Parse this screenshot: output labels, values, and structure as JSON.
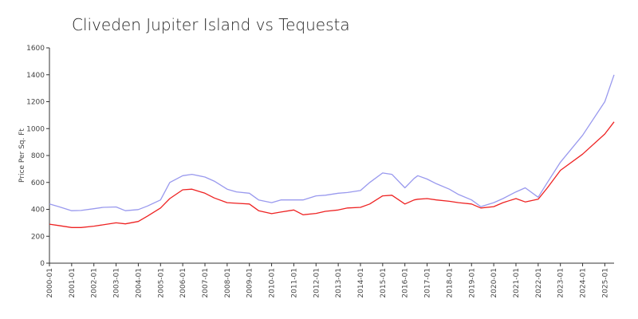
{
  "chart_data": {
    "type": "line",
    "title": "Cliveden Jupiter Island vs Tequesta",
    "xlabel": "",
    "ylabel": "Price Per Sq. Ft",
    "xlim": [
      "2000-01",
      "2025-06"
    ],
    "ylim": [
      0,
      1600
    ],
    "yticks": [
      0,
      200,
      400,
      600,
      800,
      1000,
      1200,
      1400,
      1600
    ],
    "xticks": [
      "2000-01",
      "2001-01",
      "2002-01",
      "2003-01",
      "2004-01",
      "2005-01",
      "2006-01",
      "2007-01",
      "2008-01",
      "2009-01",
      "2010-01",
      "2011-01",
      "2012-01",
      "2013-01",
      "2014-01",
      "2015-01",
      "2016-01",
      "2017-01",
      "2018-01",
      "2019-01",
      "2020-01",
      "2021-01",
      "2022-01",
      "2023-01",
      "2024-01",
      "2025-01"
    ],
    "grid": false,
    "legend": "none",
    "series": [
      {
        "color": "#9999ee",
        "points": [
          [
            "2000-01",
            440
          ],
          [
            "2000-06",
            420
          ],
          [
            "2001-01",
            390
          ],
          [
            "2001-06",
            392
          ],
          [
            "2002-01",
            405
          ],
          [
            "2002-06",
            415
          ],
          [
            "2003-01",
            418
          ],
          [
            "2003-06",
            390
          ],
          [
            "2004-01",
            398
          ],
          [
            "2004-06",
            425
          ],
          [
            "2005-01",
            470
          ],
          [
            "2005-06",
            600
          ],
          [
            "2006-01",
            650
          ],
          [
            "2006-06",
            660
          ],
          [
            "2007-01",
            640
          ],
          [
            "2007-06",
            610
          ],
          [
            "2008-01",
            550
          ],
          [
            "2008-06",
            530
          ],
          [
            "2009-01",
            520
          ],
          [
            "2009-06",
            470
          ],
          [
            "2010-01",
            450
          ],
          [
            "2010-06",
            470
          ],
          [
            "2011-01",
            470
          ],
          [
            "2011-06",
            470
          ],
          [
            "2012-01",
            500
          ],
          [
            "2012-06",
            505
          ],
          [
            "2013-01",
            520
          ],
          [
            "2013-06",
            525
          ],
          [
            "2014-01",
            540
          ],
          [
            "2014-06",
            600
          ],
          [
            "2015-01",
            670
          ],
          [
            "2015-06",
            660
          ],
          [
            "2016-01",
            560
          ],
          [
            "2016-06",
            630
          ],
          [
            "2016-08",
            650
          ],
          [
            "2017-01",
            625
          ],
          [
            "2017-06",
            590
          ],
          [
            "2018-01",
            550
          ],
          [
            "2018-06",
            510
          ],
          [
            "2019-01",
            470
          ],
          [
            "2019-06",
            420
          ],
          [
            "2020-01",
            450
          ],
          [
            "2020-06",
            480
          ],
          [
            "2021-01",
            530
          ],
          [
            "2021-06",
            560
          ],
          [
            "2022-01",
            490
          ],
          [
            "2022-06",
            600
          ],
          [
            "2023-01",
            750
          ],
          [
            "2024-01",
            950
          ],
          [
            "2025-01",
            1200
          ],
          [
            "2025-06",
            1400
          ]
        ]
      },
      {
        "color": "#ee2222",
        "points": [
          [
            "2000-01",
            290
          ],
          [
            "2000-06",
            280
          ],
          [
            "2001-01",
            265
          ],
          [
            "2001-06",
            265
          ],
          [
            "2002-01",
            275
          ],
          [
            "2002-06",
            285
          ],
          [
            "2003-01",
            300
          ],
          [
            "2003-06",
            292
          ],
          [
            "2004-01",
            310
          ],
          [
            "2004-06",
            350
          ],
          [
            "2005-01",
            410
          ],
          [
            "2005-06",
            480
          ],
          [
            "2006-01",
            545
          ],
          [
            "2006-06",
            550
          ],
          [
            "2007-01",
            520
          ],
          [
            "2007-06",
            485
          ],
          [
            "2008-01",
            450
          ],
          [
            "2008-06",
            445
          ],
          [
            "2009-01",
            440
          ],
          [
            "2009-06",
            390
          ],
          [
            "2010-01",
            368
          ],
          [
            "2010-06",
            380
          ],
          [
            "2011-01",
            395
          ],
          [
            "2011-06",
            360
          ],
          [
            "2012-01",
            370
          ],
          [
            "2012-06",
            385
          ],
          [
            "2013-01",
            395
          ],
          [
            "2013-06",
            410
          ],
          [
            "2014-01",
            415
          ],
          [
            "2014-06",
            440
          ],
          [
            "2015-01",
            500
          ],
          [
            "2015-06",
            505
          ],
          [
            "2016-01",
            440
          ],
          [
            "2016-06",
            470
          ],
          [
            "2016-08",
            475
          ],
          [
            "2017-01",
            480
          ],
          [
            "2017-06",
            470
          ],
          [
            "2018-01",
            460
          ],
          [
            "2018-06",
            450
          ],
          [
            "2019-01",
            440
          ],
          [
            "2019-06",
            410
          ],
          [
            "2020-01",
            420
          ],
          [
            "2020-06",
            450
          ],
          [
            "2021-01",
            480
          ],
          [
            "2021-06",
            455
          ],
          [
            "2022-01",
            475
          ],
          [
            "2022-06",
            560
          ],
          [
            "2023-01",
            690
          ],
          [
            "2024-01",
            810
          ],
          [
            "2025-01",
            960
          ],
          [
            "2025-06",
            1050
          ]
        ]
      }
    ]
  }
}
